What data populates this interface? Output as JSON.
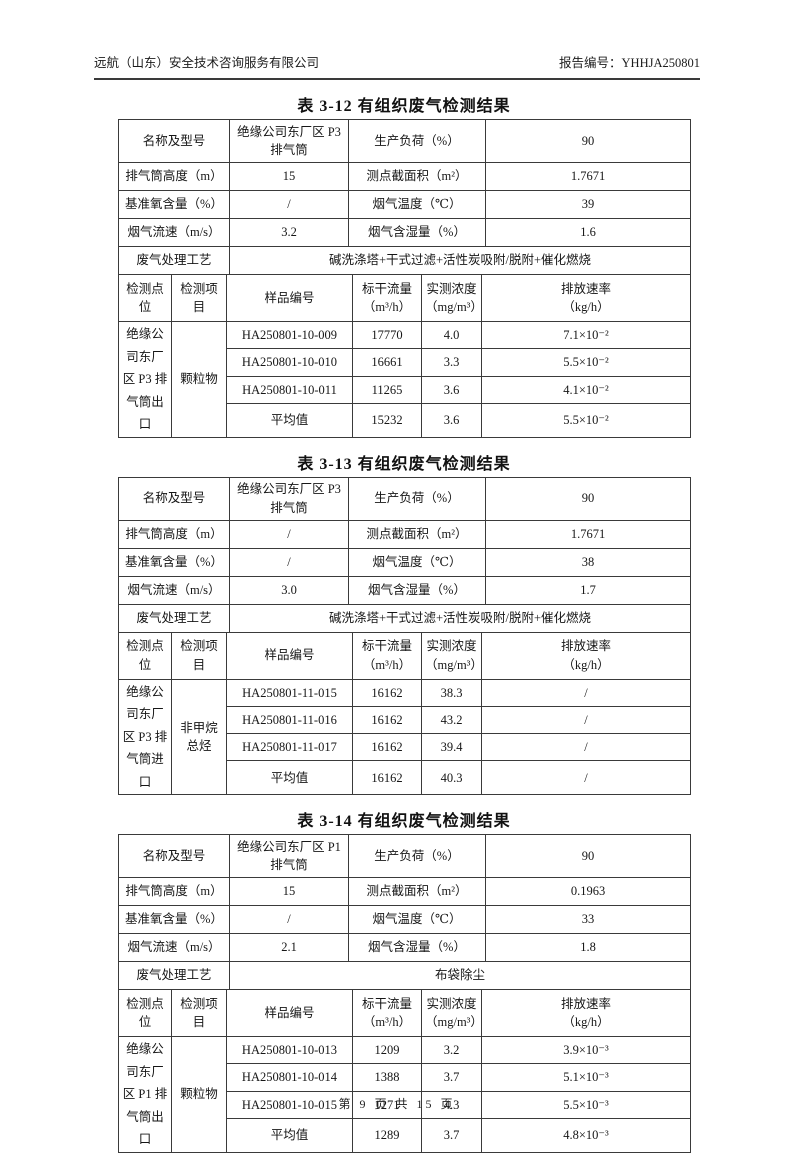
{
  "page_header": {
    "company": "远航（山东）安全技术咨询服务有限公司",
    "report_no": "报告编号：YHHJA250801"
  },
  "footer": {
    "page_text": "第 9 页 共 15 页"
  },
  "tables": [
    {
      "title": "表 3-12 有组织废气检测结果",
      "info_rows": [
        [
          "名称及型号",
          "绝缘公司东厂区 P3 排气筒",
          "生产负荷（%）",
          "90"
        ],
        [
          "排气筒高度（m）",
          "15",
          "测点截面积（m²）",
          "1.7671"
        ],
        [
          "基准氧含量（%）",
          "/",
          "烟气温度（℃）",
          "39"
        ],
        [
          "烟气流速（m/s）",
          "3.2",
          "烟气含湿量（%）",
          "1.6"
        ]
      ],
      "process_label": "废气处理工艺",
      "process_value": "碱洗涤塔+干式过滤+活性炭吸附/脱附+催化燃烧",
      "headers": [
        "检测点位",
        "检测项目",
        "样品编号",
        "标干流量\n（m³/h）",
        "实测浓度\n（mg/m³）",
        "排放速率\n（kg/h）"
      ],
      "point": "绝缘公司东厂区 P3 排气筒出口",
      "item": "颗粒物",
      "rows": [
        [
          "HA250801-10-009",
          "17770",
          "4.0",
          "7.1×10⁻²"
        ],
        [
          "HA250801-10-010",
          "16661",
          "3.3",
          "5.5×10⁻²"
        ],
        [
          "HA250801-10-011",
          "11265",
          "3.6",
          "4.1×10⁻²"
        ],
        [
          "平均值",
          "15232",
          "3.6",
          "5.5×10⁻²"
        ]
      ]
    },
    {
      "title": "表 3-13 有组织废气检测结果",
      "info_rows": [
        [
          "名称及型号",
          "绝缘公司东厂区 P3 排气筒",
          "生产负荷（%）",
          "90"
        ],
        [
          "排气筒高度（m）",
          "/",
          "测点截面积（m²）",
          "1.7671"
        ],
        [
          "基准氧含量（%）",
          "/",
          "烟气温度（℃）",
          "38"
        ],
        [
          "烟气流速（m/s）",
          "3.0",
          "烟气含湿量（%）",
          "1.7"
        ]
      ],
      "process_label": "废气处理工艺",
      "process_value": "碱洗涤塔+干式过滤+活性炭吸附/脱附+催化燃烧",
      "headers": [
        "检测点位",
        "检测项目",
        "样品编号",
        "标干流量\n（m³/h）",
        "实测浓度\n（mg/m³）",
        "排放速率\n（kg/h）"
      ],
      "point": "绝缘公司东厂区 P3 排气筒进口",
      "item": "非甲烷总烃",
      "rows": [
        [
          "HA250801-11-015",
          "16162",
          "38.3",
          "/"
        ],
        [
          "HA250801-11-016",
          "16162",
          "43.2",
          "/"
        ],
        [
          "HA250801-11-017",
          "16162",
          "39.4",
          "/"
        ],
        [
          "平均值",
          "16162",
          "40.3",
          "/"
        ]
      ]
    },
    {
      "title": "表 3-14 有组织废气检测结果",
      "info_rows": [
        [
          "名称及型号",
          "绝缘公司东厂区 P1 排气筒",
          "生产负荷（%）",
          "90"
        ],
        [
          "排气筒高度（m）",
          "15",
          "测点截面积（m²）",
          "0.1963"
        ],
        [
          "基准氧含量（%）",
          "/",
          "烟气温度（℃）",
          "33"
        ],
        [
          "烟气流速（m/s）",
          "2.1",
          "烟气含湿量（%）",
          "1.8"
        ]
      ],
      "process_label": "废气处理工艺",
      "process_value": "布袋除尘",
      "headers": [
        "检测点位",
        "检测项目",
        "样品编号",
        "标干流量\n（m³/h）",
        "实测浓度\n（mg/m³）",
        "排放速率\n（kg/h）"
      ],
      "point": "绝缘公司东厂区 P1 排气筒出口",
      "item": "颗粒物",
      "rows": [
        [
          "HA250801-10-013",
          "1209",
          "3.2",
          "3.9×10⁻³"
        ],
        [
          "HA250801-10-014",
          "1388",
          "3.7",
          "5.1×10⁻³"
        ],
        [
          "HA250801-10-015",
          "1271",
          "4.3",
          "5.5×10⁻³"
        ],
        [
          "平均值",
          "1289",
          "3.7",
          "4.8×10⁻³"
        ]
      ]
    }
  ]
}
